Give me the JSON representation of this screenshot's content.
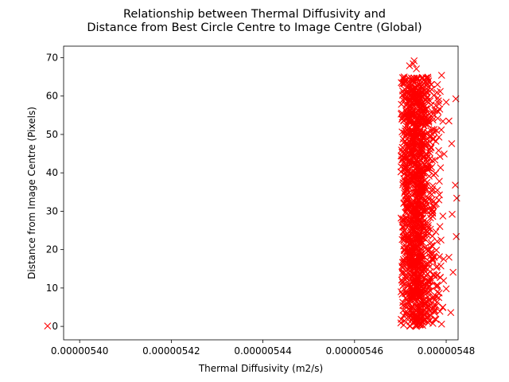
{
  "chart_data": {
    "type": "scatter",
    "title_line1": "Relationship between Thermal Diffusivity and",
    "title_line2": "Distance from Best Circle Centre to Image Centre (Global)",
    "xlabel": "Thermal Diffusivity (m2/s)",
    "ylabel": "Distance from Image Centre (Pixels)",
    "xlim": [
      5.3965e-06,
      5.4826e-06
    ],
    "ylim": [
      -3.5,
      73.0
    ],
    "x_ticks": [
      5.4e-06,
      5.42e-06,
      5.44e-06,
      5.46e-06,
      5.48e-06
    ],
    "x_tick_labels": [
      "0.00000540",
      "0.00000542",
      "0.00000544",
      "0.00000546",
      "0.00000548"
    ],
    "y_ticks": [
      0,
      10,
      20,
      30,
      40,
      50,
      60,
      70
    ],
    "y_tick_labels": [
      "0",
      "10",
      "20",
      "30",
      "40",
      "50",
      "60",
      "70"
    ],
    "grid": false,
    "marker": "x",
    "color": "#ff0000",
    "outlier": {
      "x": 5.393e-06,
      "y": 0.1
    },
    "cluster": {
      "x_range": [
        5.4701e-06,
        5.4798e-06
      ],
      "y_range": [
        0,
        65
      ],
      "approx_point_count": 1400
    },
    "series": [
      {
        "values": [
          [
            5.393e-06,
            0.1
          ],
          [
            5.473e-06,
            69.2
          ],
          [
            5.4728e-06,
            68.4
          ],
          [
            5.472e-06,
            67.9
          ],
          [
            5.4735e-06,
            67.1
          ],
          [
            5.479e-06,
            65.4
          ],
          [
            5.4705e-06,
            64.8
          ],
          [
            5.4702e-06,
            63.5
          ],
          [
            5.4781e-06,
            63.0
          ],
          [
            5.4787e-06,
            61.2
          ],
          [
            5.4821e-06,
            59.3
          ],
          [
            5.48e-06,
            58.4
          ],
          [
            5.4806e-06,
            53.5
          ],
          [
            5.4812e-06,
            47.6
          ],
          [
            5.482e-06,
            36.8
          ],
          [
            5.4823e-06,
            33.4
          ],
          [
            5.4813e-06,
            29.2
          ],
          [
            5.4822e-06,
            23.4
          ],
          [
            5.4806e-06,
            18.0
          ],
          [
            5.4815e-06,
            14.1
          ],
          [
            5.48e-06,
            9.8
          ],
          [
            5.481e-06,
            3.6
          ],
          [
            5.4701e-06,
            0.9
          ],
          [
            5.4735e-06,
            0.0
          ],
          [
            5.479e-06,
            0.6
          ]
        ]
      }
    ]
  }
}
